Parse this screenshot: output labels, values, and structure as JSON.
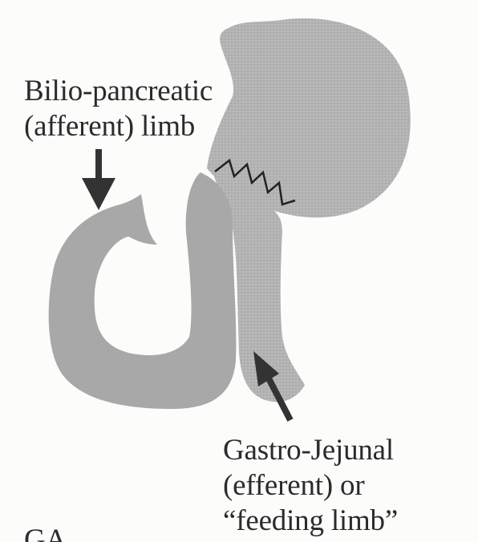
{
  "afferent_limb": {
    "line1": "Bilio-pancreatic",
    "line2": "(afferent) limb"
  },
  "efferent_limb": {
    "line1": "Gastro-Jejunal",
    "line2": "(efferent) or",
    "line3": "“feeding limb”"
  },
  "corner_fragment": "GA",
  "colors": {
    "stomach_fill": "#b9b9b9",
    "limb_fill": "#a9a9a9",
    "arrow": "#333333",
    "text": "#2b2b2b"
  }
}
